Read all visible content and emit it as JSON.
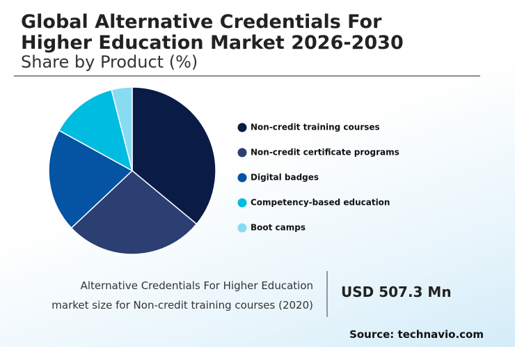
{
  "chart_data": {
    "type": "pie",
    "title_lines": [
      "Global Alternative Credentials For",
      "Higher Education Market 2026-2030"
    ],
    "subtitle": "Share by Product (%)",
    "categories": [
      "Non-credit training courses",
      "Non-credit certificate programs",
      "Digital badges",
      "Competency-based education",
      "Boot camps"
    ],
    "values": [
      36,
      27,
      20,
      13,
      4
    ],
    "colors": [
      "#0a1c45",
      "#2b3f73",
      "#0553a3",
      "#00bce0",
      "#87dcf2"
    ],
    "note_lines": [
      "Alternative Credentials For Higher Education",
      "market size for Non-credit training courses (2020)"
    ],
    "highlight_value": "USD 507.3 Mn",
    "source": "Source: technavio.com"
  }
}
